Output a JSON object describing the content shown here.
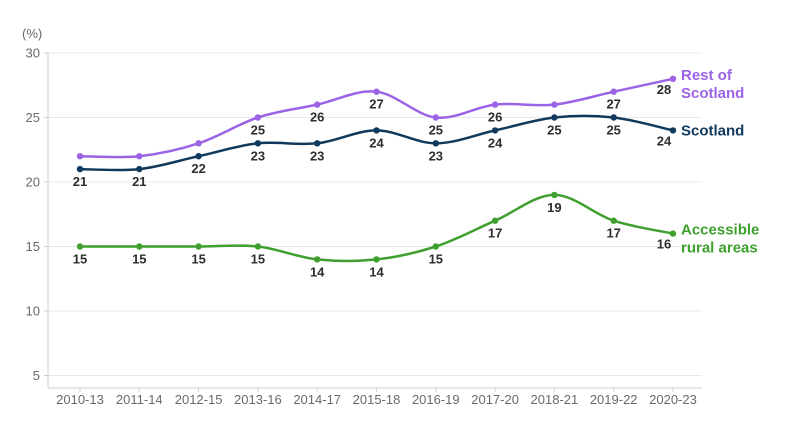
{
  "chart_data": {
    "type": "line",
    "title": "",
    "ylabel": "(%)",
    "xlabel": "",
    "categories": [
      "2010-13",
      "2011-14",
      "2012-15",
      "2013-16",
      "2014-17",
      "2015-18",
      "2016-19",
      "2017-20",
      "2018-21",
      "2019-22",
      "2020-23"
    ],
    "yticks": [
      30,
      25,
      20,
      15,
      10,
      5
    ],
    "ylim": [
      3.5,
      30
    ],
    "grid": true,
    "legend_position": "right-of-line-ends",
    "series": [
      {
        "name": "Rest of Scotland",
        "legend_lines": [
          "Rest of",
          "Scotland"
        ],
        "color": "#9b63e6",
        "values": [
          22,
          22,
          23,
          25,
          26,
          27,
          25,
          26,
          26,
          27,
          28
        ],
        "labeled": [
          false,
          false,
          false,
          true,
          true,
          true,
          true,
          true,
          false,
          true,
          true
        ]
      },
      {
        "name": "Scotland",
        "legend_lines": [
          "Scotland"
        ],
        "color": "#0f3a5d",
        "values": [
          21,
          21,
          22,
          23,
          23,
          24,
          23,
          24,
          25,
          25,
          24
        ],
        "labeled": [
          true,
          true,
          true,
          true,
          true,
          true,
          true,
          true,
          true,
          true,
          true
        ]
      },
      {
        "name": "Accessible rural areas",
        "legend_lines": [
          "Accessible",
          "rural areas"
        ],
        "color": "#3fa02f",
        "values": [
          15,
          15,
          15,
          15,
          14,
          14,
          15,
          17,
          19,
          17,
          16
        ],
        "labeled": [
          true,
          true,
          true,
          true,
          true,
          true,
          true,
          true,
          true,
          true,
          true
        ]
      }
    ],
    "colors": {
      "gridline": "#e8e8e8",
      "axis": "#cfcfcf",
      "tick_label": "#6a6a6a",
      "data_label": "#2e2e2e"
    }
  }
}
